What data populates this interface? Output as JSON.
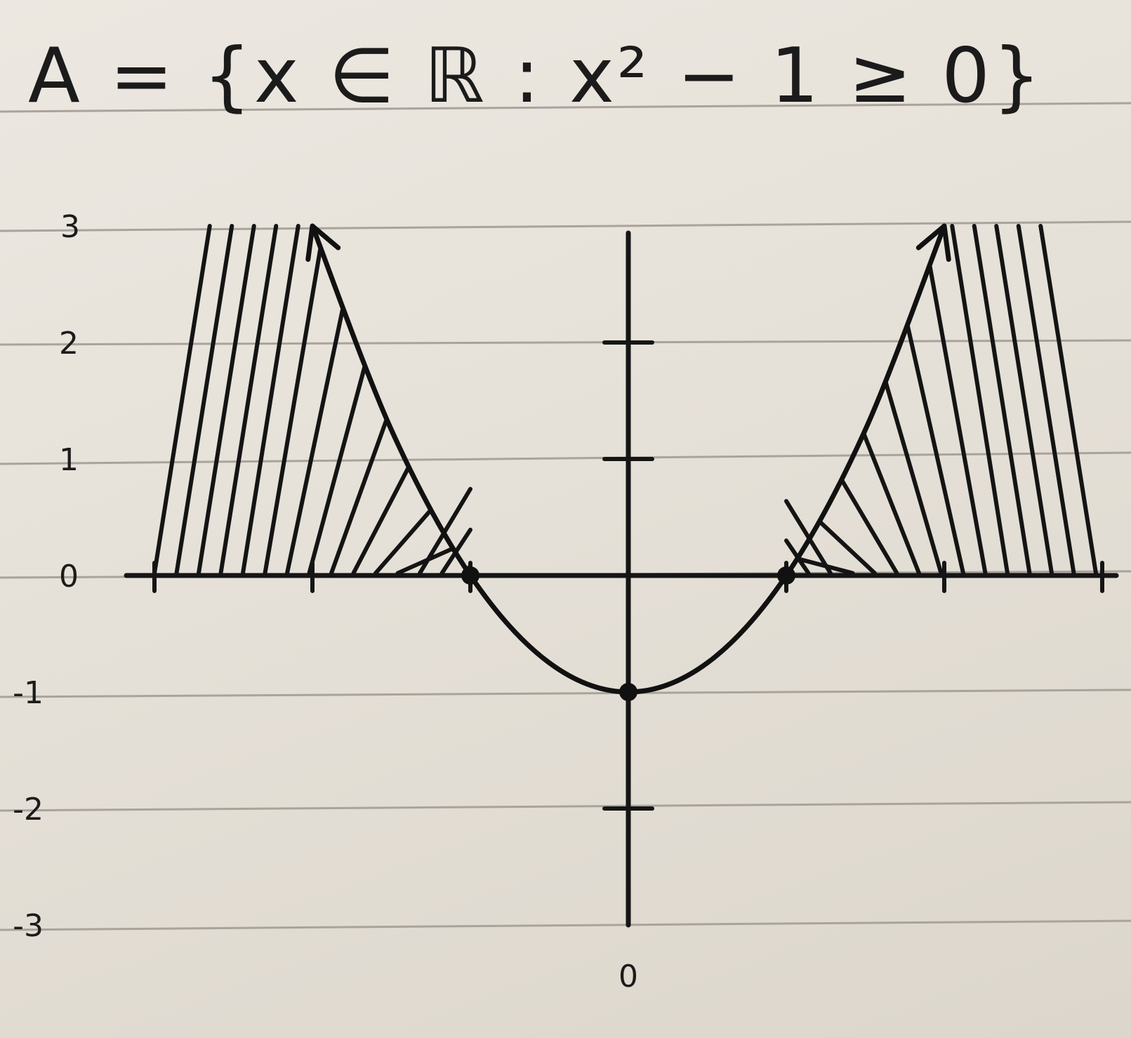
{
  "chart_data": {
    "type": "line",
    "title": "A = {x ∈ ℝ : x² − 1 ≥ 0}",
    "xlabel": "",
    "ylabel": "",
    "xlim": [
      -3,
      3
    ],
    "ylim": [
      -3,
      3
    ],
    "x_tick_labels": [
      "0"
    ],
    "y_tick_labels": [
      "3",
      "2",
      "1",
      "0",
      "-1",
      "-2",
      "-3"
    ],
    "series": [
      {
        "function": "y = x^2 - 1",
        "x": [
          -2.0,
          -1.5,
          -1.0,
          -0.5,
          0.0,
          0.5,
          1.0,
          1.5,
          2.0
        ],
        "y": [
          3.0,
          1.25,
          0.0,
          -0.75,
          -1.0,
          -0.75,
          0.0,
          1.25,
          3.0
        ]
      }
    ],
    "marked_points": [
      {
        "x": -1,
        "y": 0
      },
      {
        "x": 0,
        "y": -1
      },
      {
        "x": 1,
        "y": 0
      }
    ],
    "shaded_regions": [
      {
        "x_from": -3,
        "x_to": -1
      },
      {
        "x_from": 1,
        "x_to": 3
      }
    ],
    "grid": false,
    "legend": "none"
  },
  "colors": {
    "paper": "#e7e2da",
    "ruled_line": "#a9a39b",
    "ink": "#151515"
  }
}
